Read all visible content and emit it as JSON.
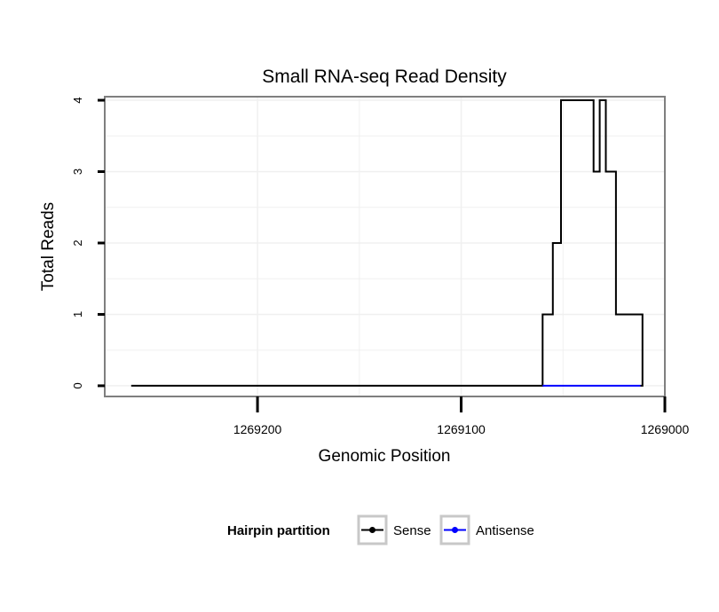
{
  "chart_data": {
    "type": "line",
    "title": "Small RNA-seq Read Density",
    "xlabel": "Genomic Position",
    "ylabel": "Total Reads",
    "x_reversed": true,
    "xlim": [
      1269000,
      1269275
    ],
    "ylim": [
      -0.15,
      4.05
    ],
    "x_ticks": [
      1269200,
      1269100,
      1269000
    ],
    "x_tick_labels": [
      "1269200",
      "1269100",
      "1269000"
    ],
    "y_ticks": [
      0,
      1,
      2,
      3,
      4
    ],
    "y_tick_labels": [
      "0",
      "1",
      "2",
      "3",
      "4"
    ],
    "grid": true,
    "legend": {
      "title": "Hairpin partition",
      "position": "bottom",
      "entries": [
        "Sense",
        "Antisense"
      ]
    },
    "series": [
      {
        "name": "Sense",
        "color": "#000000",
        "x": [
          1269262,
          1269060,
          1269060,
          1269055,
          1269055,
          1269051,
          1269051,
          1269047,
          1269047,
          1269035,
          1269035,
          1269032,
          1269032,
          1269029,
          1269029,
          1269024,
          1269024,
          1269021,
          1269021,
          1269011,
          1269011,
          1269012
        ],
        "y": [
          0,
          0,
          1,
          1,
          2,
          2,
          4,
          4,
          4,
          4,
          3,
          3,
          4,
          4,
          3,
          3,
          1,
          1,
          1,
          1,
          0,
          0
        ]
      },
      {
        "name": "Antisense",
        "color": "#0000ff",
        "x": [
          1269060,
          1269012
        ],
        "y": [
          0,
          0
        ]
      }
    ]
  }
}
